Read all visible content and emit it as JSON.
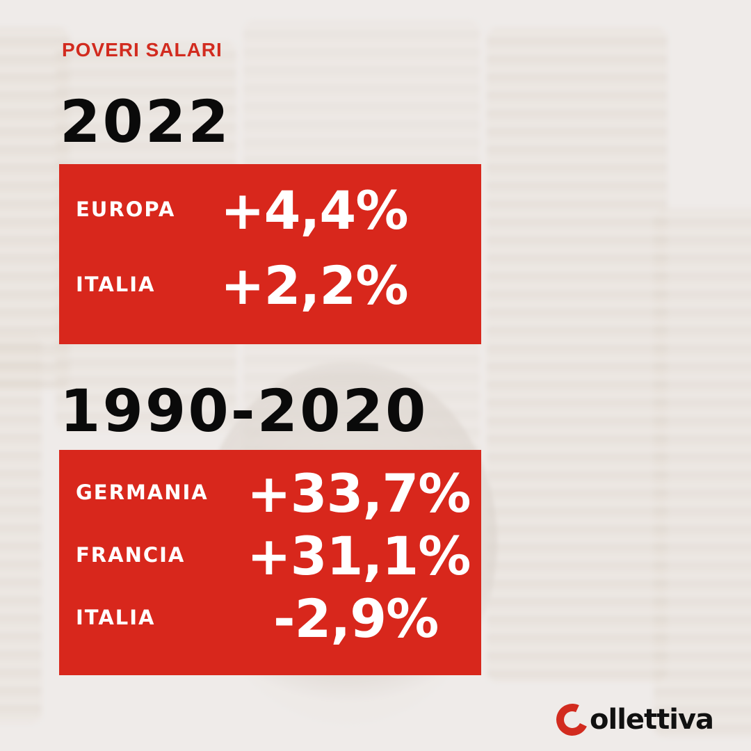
{
  "kicker": "POVERI SALARI",
  "section_2022": {
    "year": "2022",
    "rows": [
      {
        "label": "EUROPA",
        "value": "+4,4%"
      },
      {
        "label": "ITALIA",
        "value": "+2,2%"
      }
    ]
  },
  "section_1990": {
    "year": "1990-2020",
    "rows": [
      {
        "label": "GERMANIA",
        "value": "+33,7%"
      },
      {
        "label": "FRANCIA",
        "value": "+31,1%"
      },
      {
        "label": "ITALIA",
        "value": "-2,9%"
      }
    ]
  },
  "brand": {
    "name": "Collettiva",
    "logo_text": "ollettiva",
    "accent": "#d8271c"
  }
}
